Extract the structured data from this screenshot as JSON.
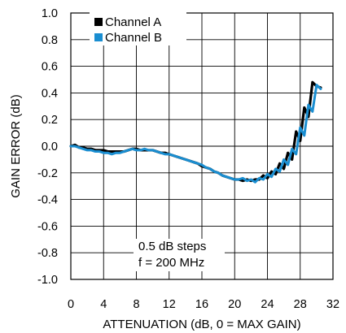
{
  "chart_data": {
    "type": "line",
    "xlabel": "ATTENUATION (dB, 0 = MAX GAIN)",
    "ylabel": "GAIN ERROR (dB)",
    "xlim": [
      0,
      32
    ],
    "ylim": [
      -1.0,
      1.0
    ],
    "xticks": [
      "0",
      "4",
      "8",
      "12",
      "16",
      "20",
      "24",
      "28",
      "32"
    ],
    "yticks": [
      "1.0",
      "0.8",
      "0.6",
      "0.4",
      "0.2",
      "0.0",
      "-0.2",
      "-0.4",
      "-0.6",
      "-0.8",
      "-1.0"
    ],
    "grid": true,
    "legend": "top-left",
    "annotations": [
      "0.5 dB steps",
      "f = 200 MHz"
    ],
    "series": [
      {
        "name": "Channel A",
        "color": "#000000",
        "x": [
          0,
          0.5,
          1,
          1.5,
          2,
          2.5,
          3,
          3.5,
          4,
          4.5,
          5,
          5.5,
          6,
          6.5,
          7,
          7.5,
          8,
          8.5,
          9,
          9.5,
          10,
          10.5,
          11,
          11.5,
          12,
          12.5,
          13,
          13.5,
          14,
          14.5,
          15,
          15.5,
          16,
          16.5,
          17,
          17.5,
          18,
          18.5,
          19,
          19.5,
          20,
          20.5,
          21,
          21.5,
          22,
          22.5,
          23,
          23.5,
          24,
          24.5,
          25,
          25.5,
          26,
          26.5,
          27,
          27.5,
          28,
          28.5,
          29,
          29.5,
          30,
          30.5
        ],
        "y": [
          0,
          0.01,
          -0.01,
          -0.01,
          -0.02,
          -0.02,
          -0.03,
          -0.03,
          -0.03,
          -0.04,
          -0.04,
          -0.04,
          -0.04,
          -0.04,
          -0.03,
          -0.02,
          -0.02,
          -0.03,
          -0.03,
          -0.03,
          -0.03,
          -0.04,
          -0.05,
          -0.05,
          -0.06,
          -0.07,
          -0.08,
          -0.09,
          -0.1,
          -0.11,
          -0.12,
          -0.13,
          -0.15,
          -0.16,
          -0.17,
          -0.19,
          -0.2,
          -0.22,
          -0.23,
          -0.24,
          -0.25,
          -0.25,
          -0.26,
          -0.25,
          -0.26,
          -0.25,
          -0.25,
          -0.22,
          -0.24,
          -0.19,
          -0.21,
          -0.13,
          -0.17,
          -0.05,
          -0.1,
          0.11,
          0.04,
          0.29,
          0.22,
          0.48,
          0.45,
          0.44
        ]
      },
      {
        "name": "Channel B",
        "color": "#1a8ed1",
        "x": [
          0,
          0.5,
          1,
          1.5,
          2,
          2.5,
          3,
          3.5,
          4,
          4.5,
          5,
          5.5,
          6,
          6.5,
          7,
          7.5,
          8,
          8.5,
          9,
          9.5,
          10,
          10.5,
          11,
          11.5,
          12,
          12.5,
          13,
          13.5,
          14,
          14.5,
          15,
          15.5,
          16,
          16.5,
          17,
          17.5,
          18,
          18.5,
          19,
          19.5,
          20,
          20.5,
          21,
          21.5,
          22,
          22.5,
          23,
          23.5,
          24,
          24.5,
          25,
          25.5,
          26,
          26.5,
          27,
          27.5,
          28,
          28.5,
          29,
          29.5,
          30,
          30.5
        ],
        "y": [
          0,
          0.0,
          -0.01,
          -0.02,
          -0.03,
          -0.03,
          -0.04,
          -0.04,
          -0.05,
          -0.05,
          -0.06,
          -0.05,
          -0.05,
          -0.04,
          -0.03,
          -0.02,
          -0.03,
          -0.03,
          -0.02,
          -0.03,
          -0.03,
          -0.04,
          -0.05,
          -0.06,
          -0.06,
          -0.07,
          -0.08,
          -0.09,
          -0.1,
          -0.11,
          -0.12,
          -0.13,
          -0.14,
          -0.16,
          -0.17,
          -0.19,
          -0.2,
          -0.22,
          -0.23,
          -0.24,
          -0.25,
          -0.25,
          -0.24,
          -0.26,
          -0.25,
          -0.27,
          -0.24,
          -0.25,
          -0.21,
          -0.23,
          -0.17,
          -0.19,
          -0.1,
          -0.14,
          -0.02,
          -0.06,
          0.14,
          0.08,
          0.31,
          0.26,
          0.46,
          0.43
        ]
      }
    ]
  }
}
